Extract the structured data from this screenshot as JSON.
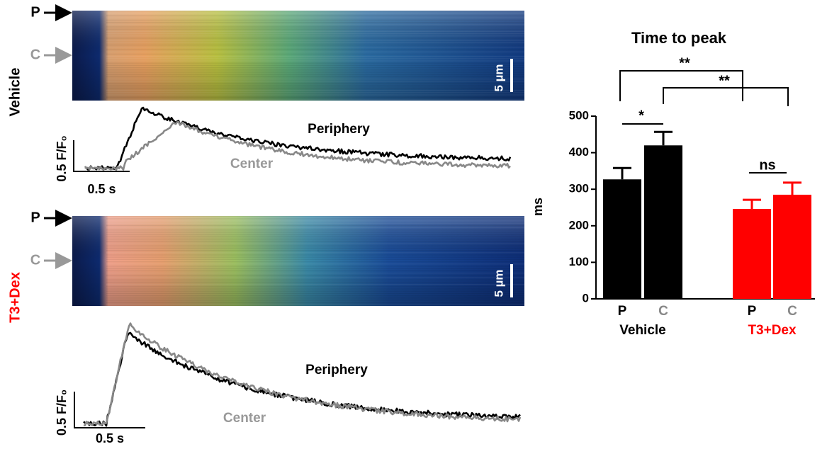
{
  "chart_data": {
    "type": "bar",
    "title": "Time to peak",
    "ylabel": "ms",
    "ylim": [
      0,
      500
    ],
    "yticks": [
      0,
      100,
      200,
      300,
      400,
      500
    ],
    "category_colors": [
      "#000000",
      "#888888"
    ],
    "groups": [
      {
        "label": "Vehicle",
        "color": "#000000",
        "categories": [
          "P",
          "C"
        ],
        "values": [
          327,
          420
        ],
        "errors": [
          31,
          37
        ]
      },
      {
        "label": "T3+Dex",
        "color": "#ff0000",
        "categories": [
          "P",
          "C"
        ],
        "values": [
          246,
          285
        ],
        "errors": [
          25,
          33
        ]
      }
    ],
    "significance": [
      "*",
      "**",
      "**",
      "ns"
    ]
  },
  "panels": [
    {
      "condition": "Vehicle",
      "condition_color": "#000000",
      "periphery_marker": "P",
      "center_marker": "C",
      "space_scale": "5 µm",
      "amplitude_scale": "0.5 F/F₀",
      "time_scale": "0.5 s",
      "periphery_label": "Periphery",
      "center_label": "Center"
    },
    {
      "condition": "T3+Dex",
      "condition_color": "#ff0000",
      "periphery_marker": "P",
      "center_marker": "C",
      "space_scale": "5 µm",
      "amplitude_scale": "0.5 F/F₀",
      "time_scale": "0.5 s",
      "periphery_label": "Periphery",
      "center_label": "Center"
    }
  ]
}
